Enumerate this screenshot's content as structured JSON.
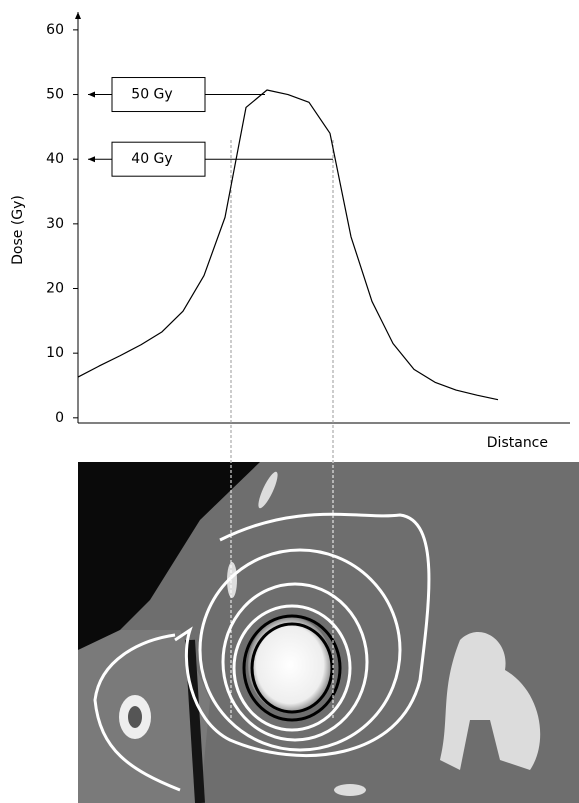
{
  "chart_data": {
    "type": "line",
    "x_label": "Distance",
    "y_label": "Dose (Gy)",
    "categories": [
      null,
      null,
      null,
      null,
      null,
      null,
      null,
      null,
      null,
      null,
      null,
      null,
      null,
      null,
      null,
      null,
      null,
      null,
      null,
      null,
      null
    ],
    "values": [
      6.3,
      8,
      9.6,
      11.3,
      13.3,
      16.5,
      22,
      31,
      48,
      50.7,
      50,
      48.8,
      44,
      28,
      18,
      11.5,
      7.5,
      5.5,
      4.3,
      3.5,
      2.8
    ],
    "color": "#000000",
    "ylim": [
      -0.8,
      62.3
    ],
    "yticks": [
      0,
      10,
      20,
      30,
      40,
      50,
      60
    ],
    "annotations": [
      {
        "label": "50 Gy",
        "value": 50
      },
      {
        "label": "40 Gy",
        "value": 40
      }
    ]
  }
}
